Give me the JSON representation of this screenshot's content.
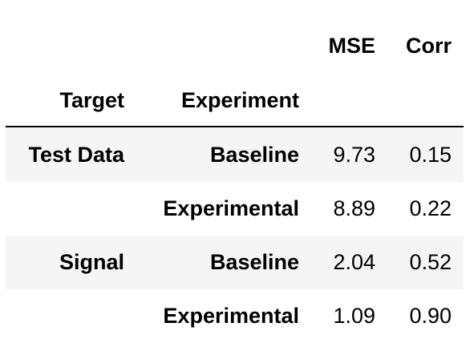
{
  "table": {
    "columns": [
      "MSE",
      "Corr"
    ],
    "index_names": [
      "Target",
      "Experiment"
    ],
    "groups": [
      {
        "target": "Test Data",
        "rows": [
          {
            "experiment": "Baseline",
            "values": [
              "9.73",
              "0.15"
            ]
          },
          {
            "experiment": "Experimental",
            "values": [
              "8.89",
              "0.22"
            ]
          }
        ]
      },
      {
        "target": "Signal",
        "rows": [
          {
            "experiment": "Baseline",
            "values": [
              "2.04",
              "0.52"
            ]
          },
          {
            "experiment": "Experimental",
            "values": [
              "1.09",
              "0.90"
            ]
          }
        ]
      }
    ]
  }
}
